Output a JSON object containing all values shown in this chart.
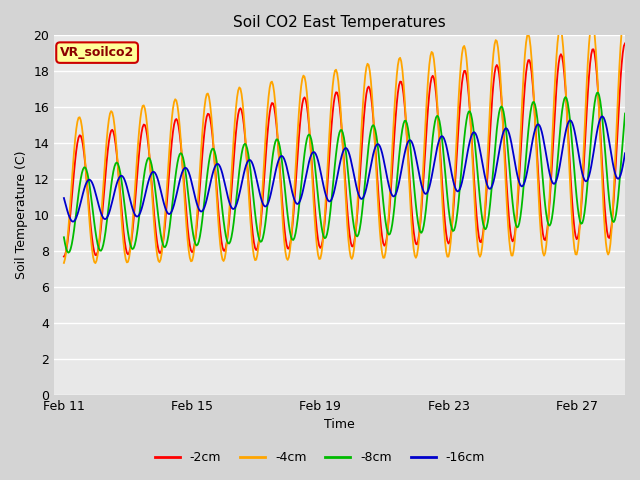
{
  "title": "Soil CO2 East Temperatures",
  "xlabel": "Time",
  "ylabel": "Soil Temperature (C)",
  "ylim": [
    0,
    20
  ],
  "colors": {
    "-2cm": "#ff0000",
    "-4cm": "#ffa500",
    "-8cm": "#00bb00",
    "-16cm": "#0000cc"
  },
  "legend_labels": [
    "-2cm",
    "-4cm",
    "-8cm",
    "-16cm"
  ],
  "annotation_text": "VR_soilco2",
  "annotation_bg": "#ffff99",
  "annotation_border": "#cc0000",
  "xtick_labels": [
    "Feb 11",
    "Feb 15",
    "Feb 19",
    "Feb 23",
    "Feb 27"
  ],
  "plot_bg": "#e8e8e8",
  "figure_bg": "#d4d4d4",
  "grid_color": "#ffffff",
  "n_points": 500,
  "end_day": 17.5
}
